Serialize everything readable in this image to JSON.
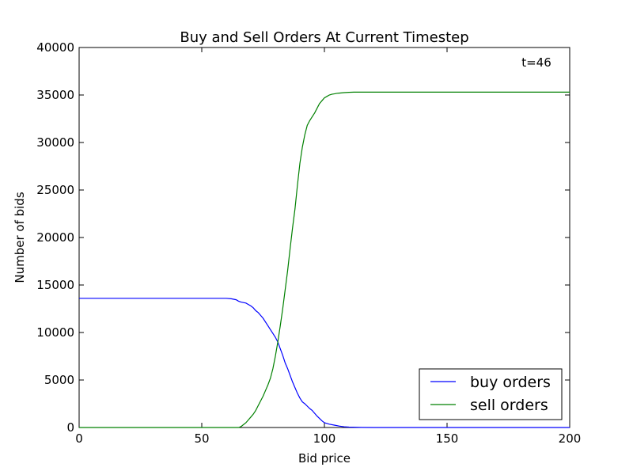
{
  "chart_data": {
    "type": "line",
    "title": "Buy and Sell Orders At Current Timestep",
    "xlabel": "Bid price",
    "ylabel": "Number of bids",
    "xlim": [
      0,
      200
    ],
    "ylim": [
      0,
      40000
    ],
    "xticks": [
      0,
      50,
      100,
      150,
      200
    ],
    "xtick_labels": [
      "0",
      "50",
      "100",
      "150",
      "200"
    ],
    "yticks": [
      0,
      5000,
      10000,
      15000,
      20000,
      25000,
      30000,
      35000,
      40000
    ],
    "ytick_labels": [
      "0",
      "5000",
      "10000",
      "15000",
      "20000",
      "25000",
      "30000",
      "35000",
      "40000"
    ],
    "grid": false,
    "legend_position": "lower-right",
    "annotation": "t=46",
    "series": [
      {
        "name": "buy orders",
        "color": "#0000ff",
        "x": [
          0,
          10,
          20,
          30,
          40,
          50,
          55,
          60,
          62,
          64,
          65,
          66,
          67,
          68,
          69,
          70,
          71,
          72,
          73,
          74,
          75,
          76,
          77,
          78,
          79,
          80,
          81,
          82,
          83,
          84,
          85,
          86,
          87,
          88,
          89,
          90,
          91,
          92,
          93,
          94,
          95,
          96,
          97,
          98,
          99,
          100,
          102,
          104,
          106,
          108,
          110,
          115,
          120,
          150,
          200
        ],
        "y": [
          13600,
          13600,
          13600,
          13600,
          13600,
          13600,
          13600,
          13600,
          13550,
          13450,
          13300,
          13200,
          13150,
          13100,
          12950,
          12800,
          12600,
          12300,
          12100,
          11800,
          11500,
          11100,
          10700,
          10300,
          9900,
          9500,
          9000,
          8300,
          7600,
          6800,
          6200,
          5500,
          4800,
          4200,
          3600,
          3100,
          2700,
          2500,
          2250,
          2000,
          1800,
          1500,
          1200,
          950,
          700,
          500,
          350,
          250,
          150,
          80,
          40,
          10,
          0,
          0,
          0
        ]
      },
      {
        "name": "sell orders",
        "color": "#008000",
        "x": [
          0,
          20,
          40,
          60,
          65,
          66,
          67,
          68,
          69,
          70,
          71,
          72,
          73,
          74,
          75,
          76,
          77,
          78,
          79,
          80,
          81,
          82,
          83,
          84,
          85,
          86,
          87,
          88,
          89,
          90,
          91,
          92,
          93,
          94,
          95,
          96,
          97,
          98,
          99,
          100,
          101,
          102,
          103,
          104,
          105,
          106,
          108,
          110,
          112,
          115,
          120,
          150,
          200
        ],
        "y": [
          0,
          0,
          0,
          0,
          0,
          100,
          300,
          500,
          800,
          1100,
          1400,
          1800,
          2300,
          2800,
          3300,
          3900,
          4500,
          5200,
          6200,
          7500,
          9000,
          10700,
          12500,
          14500,
          16500,
          18800,
          21000,
          23000,
          25500,
          27800,
          29500,
          30800,
          31800,
          32300,
          32700,
          33100,
          33600,
          34100,
          34400,
          34700,
          34850,
          35000,
          35080,
          35120,
          35170,
          35200,
          35250,
          35280,
          35300,
          35300,
          35300,
          35300,
          35300
        ]
      }
    ]
  }
}
